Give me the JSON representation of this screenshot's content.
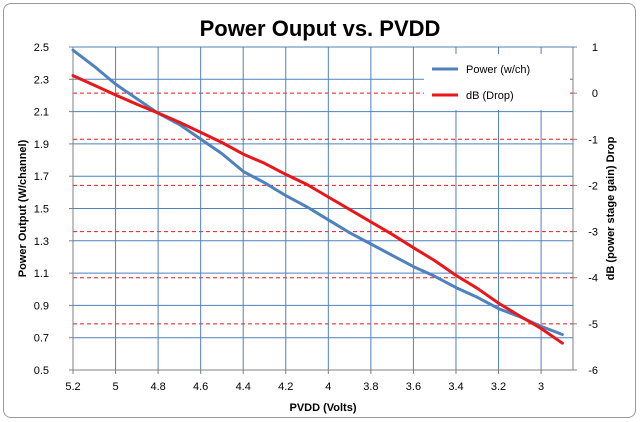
{
  "chart_data": {
    "type": "line",
    "title": "Power Ouput vs. PVDD",
    "xlabel": "PVDD (Volts)",
    "ylabel": "Power Output (W/channel)",
    "y2label": "dB (power stage gain) Drop",
    "x_ticks": [
      "5.2",
      "5",
      "4.8",
      "4.6",
      "4.4",
      "4.2",
      "4",
      "3.8",
      "3.6",
      "3.4",
      "3.2",
      "3"
    ],
    "xlim": [
      5.2,
      2.85
    ],
    "ylim": [
      0.5,
      2.5
    ],
    "y_ticks": [
      "0.5",
      "0.7",
      "0.9",
      "1.1",
      "1.3",
      "1.5",
      "1.7",
      "1.9",
      "2.1",
      "2.3",
      "2.5"
    ],
    "y2lim": [
      -6,
      1
    ],
    "y2_ticks": [
      "-6",
      "-5",
      "-4",
      "-3",
      "-2",
      "-1",
      "0",
      "1"
    ],
    "grid": true,
    "legend_position": "top-right",
    "series": [
      {
        "name": "Power (w/ch)",
        "axis": "left",
        "color": "#4f81bd",
        "x": [
          5.2,
          5.1,
          5.0,
          4.9,
          4.8,
          4.7,
          4.6,
          4.5,
          4.4,
          4.3,
          4.2,
          4.1,
          4.0,
          3.9,
          3.8,
          3.7,
          3.6,
          3.5,
          3.4,
          3.3,
          3.2,
          3.1,
          3.0,
          2.9
        ],
        "values": [
          2.48,
          2.38,
          2.27,
          2.18,
          2.09,
          2.02,
          1.93,
          1.84,
          1.73,
          1.66,
          1.58,
          1.51,
          1.43,
          1.35,
          1.28,
          1.21,
          1.14,
          1.08,
          1.01,
          0.95,
          0.88,
          0.83,
          0.77,
          0.72
        ]
      },
      {
        "name": "dB (Drop)",
        "axis": "right",
        "color": "#e8171a",
        "x": [
          5.2,
          5.1,
          5.0,
          4.9,
          4.8,
          4.7,
          4.6,
          4.5,
          4.4,
          4.3,
          4.2,
          4.1,
          4.0,
          3.9,
          3.8,
          3.7,
          3.6,
          3.5,
          3.4,
          3.3,
          3.2,
          3.1,
          3.0,
          2.9
        ],
        "values": [
          0.38,
          0.17,
          -0.04,
          -0.24,
          -0.43,
          -0.63,
          -0.85,
          -1.07,
          -1.32,
          -1.52,
          -1.76,
          -1.98,
          -2.25,
          -2.52,
          -2.79,
          -3.06,
          -3.35,
          -3.63,
          -3.95,
          -4.23,
          -4.55,
          -4.83,
          -5.1,
          -5.42
        ]
      }
    ]
  }
}
